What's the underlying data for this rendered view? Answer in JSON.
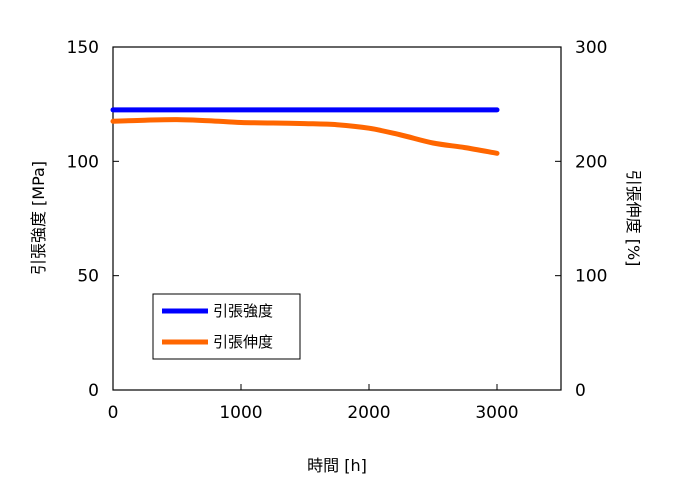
{
  "chart_data": {
    "type": "line",
    "x": [
      0,
      250,
      500,
      750,
      1000,
      1250,
      1500,
      1750,
      2000,
      2250,
      2500,
      2750,
      3000
    ],
    "xlabel": "時間 [h]",
    "ylabel_left": "引張強度 [MPa]",
    "ylabel_right": "引張伸度 [%]",
    "xlim": [
      0,
      3500
    ],
    "ylim_left": [
      0,
      150
    ],
    "ylim_right": [
      0,
      300
    ],
    "xticks": [
      0,
      1000,
      2000,
      3000
    ],
    "yticks_left": [
      0,
      50,
      100,
      150
    ],
    "yticks_right": [
      0,
      100,
      200,
      300
    ],
    "grid": false,
    "legend_position": "lower-left",
    "series": [
      {
        "name": "引張強度",
        "axis": "left",
        "color": "#0000ff",
        "values": [
          122.5,
          122.5,
          122.5,
          122.5,
          122.5,
          122.5,
          122.5,
          122.5,
          122.5,
          122.5,
          122.5,
          122.5,
          122.5
        ]
      },
      {
        "name": "引張伸度",
        "axis": "right",
        "color": "#ff6600",
        "values": [
          235,
          236,
          236.5,
          235.5,
          234,
          233.5,
          233,
          232,
          229,
          223,
          216,
          212,
          207
        ]
      }
    ]
  }
}
